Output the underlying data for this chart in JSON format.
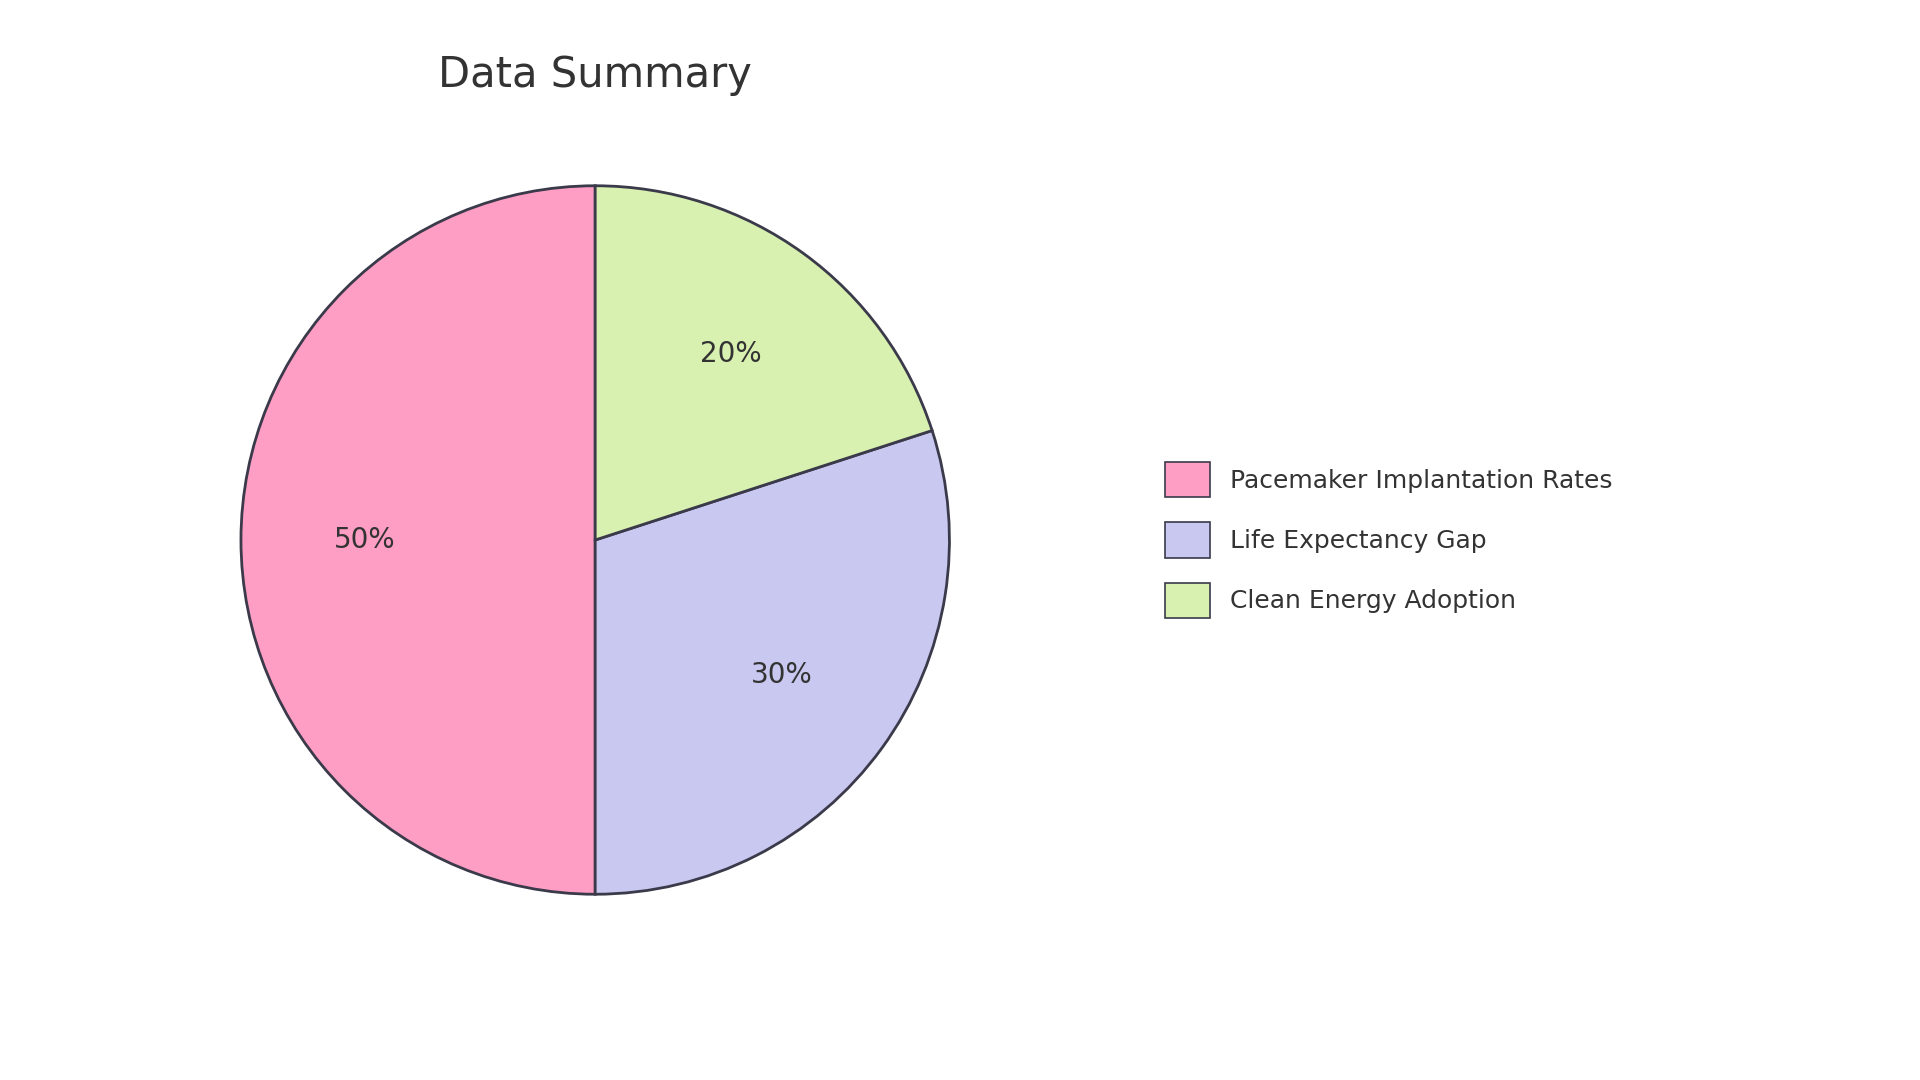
{
  "title": "Data Summary",
  "title_fontsize": 30,
  "title_color": "#333333",
  "labels": [
    "Pacemaker Implantation Rates",
    "Life Expectancy Gap",
    "Clean Energy Adoption"
  ],
  "values": [
    50,
    30,
    20
  ],
  "colors": [
    "#FF9EC4",
    "#C8C8F0",
    "#D8F0B0"
  ],
  "edge_color": "#3a3a4a",
  "edge_linewidth": 2.0,
  "autopct_fontsize": 20,
  "autopct_color": "#333333",
  "legend_fontsize": 18,
  "background_color": "#ffffff",
  "startangle": 90
}
